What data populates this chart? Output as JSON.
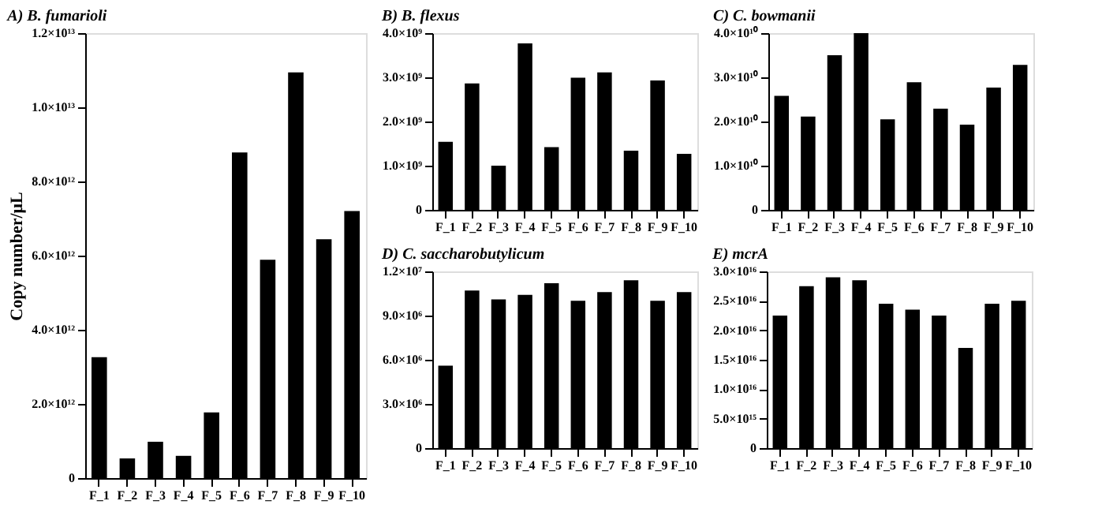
{
  "chart_data": [
    {
      "type": "bar",
      "title": "A) B. fumarioli",
      "ylabel": "Copy number/μL",
      "color": "#000000",
      "grid": false,
      "categories": [
        "F_1",
        "F_2",
        "F_3",
        "F_4",
        "F_5",
        "F_6",
        "F_7",
        "F_8",
        "F_9",
        "F_10"
      ],
      "values": [
        3260000000000.0,
        530000000000.0,
        980000000000.0,
        600000000000.0,
        1770000000000.0,
        8780000000000.0,
        5890000000000.0,
        10940000000000.0,
        6440000000000.0,
        7200000000000.0
      ],
      "ylim": [
        0,
        12000000000000.0
      ],
      "yticks": [
        0,
        {
          "value": 2000000000000.0,
          "label": "2.0×10¹²"
        },
        {
          "value": 4000000000000.0,
          "label": "4.0×10¹²"
        },
        {
          "value": 6000000000000.0,
          "label": "6.0×10¹²"
        },
        {
          "value": 8000000000000.0,
          "label": "8.0×10¹²"
        },
        {
          "value": 10000000000000.0,
          "label": "1.0×10¹³"
        },
        {
          "value": 12000000000000.0,
          "label": "1.2×10¹³"
        }
      ]
    },
    {
      "type": "bar",
      "title": "B) B. flexus",
      "color": "#000000",
      "grid": false,
      "categories": [
        "F_1",
        "F_2",
        "F_3",
        "F_4",
        "F_5",
        "F_6",
        "F_7",
        "F_8",
        "F_9",
        "F_10"
      ],
      "values": [
        1540000000.0,
        2860000000.0,
        1000000000.0,
        3770000000.0,
        1420000000.0,
        2990000000.0,
        3110000000.0,
        1340000000.0,
        2930000000.0,
        1270000000.0
      ],
      "ylim": [
        0,
        4000000000.0
      ],
      "yticks": [
        0,
        {
          "value": 1000000000.0,
          "label": "1.0×10⁹"
        },
        {
          "value": 2000000000.0,
          "label": "2.0×10⁹"
        },
        {
          "value": 3000000000.0,
          "label": "3.0×10⁹"
        },
        {
          "value": 4000000000.0,
          "label": "4.0×10⁹"
        }
      ]
    },
    {
      "type": "bar",
      "title": "C) C. bowmanii",
      "color": "#000000",
      "grid": false,
      "categories": [
        "F_1",
        "F_2",
        "F_3",
        "F_4",
        "F_5",
        "F_6",
        "F_7",
        "F_8",
        "F_9",
        "F_10"
      ],
      "values": [
        25800000000.0,
        21100000000.0,
        35000000000.0,
        40000000000.0,
        20500000000.0,
        28900000000.0,
        22900000000.0,
        19300000000.0,
        27700000000.0,
        32800000000.0
      ],
      "ylim": [
        0,
        40000000000.0
      ],
      "yticks": [
        0,
        {
          "value": 10000000000.0,
          "label": "1.0×10¹⁰"
        },
        {
          "value": 20000000000.0,
          "label": "2.0×10¹⁰"
        },
        {
          "value": 30000000000.0,
          "label": "3.0×10¹⁰"
        },
        {
          "value": 40000000000.0,
          "label": "4.0×10¹⁰"
        }
      ]
    },
    {
      "type": "bar",
      "title": "D) C. saccharobutylicum",
      "color": "#000000",
      "grid": false,
      "categories": [
        "F_1",
        "F_2",
        "F_3",
        "F_4",
        "F_5",
        "F_6",
        "F_7",
        "F_8",
        "F_9",
        "F_10"
      ],
      "values": [
        5600000.0,
        10700000.0,
        10100000.0,
        10400000.0,
        11200000.0,
        10000000.0,
        10600000.0,
        11400000.0,
        10000000.0,
        10600000.0
      ],
      "ylim": [
        0,
        12000000.0
      ],
      "yticks": [
        0,
        {
          "value": 3000000.0,
          "label": "3.0×10⁶"
        },
        {
          "value": 6000000.0,
          "label": "6.0×10⁶"
        },
        {
          "value": 9000000.0,
          "label": "9.0×10⁶"
        },
        {
          "value": 12000000.0,
          "label": "1.2×10⁷"
        }
      ]
    },
    {
      "type": "bar",
      "title": "E) mcrA",
      "color": "#000000",
      "grid": false,
      "categories": [
        "F_1",
        "F_2",
        "F_3",
        "F_4",
        "F_5",
        "F_6",
        "F_7",
        "F_8",
        "F_9",
        "F_10"
      ],
      "values": [
        2.25e+16,
        2.75e+16,
        2.9e+16,
        2.85e+16,
        2.45e+16,
        2.35e+16,
        2.25e+16,
        1.7e+16,
        2.45e+16,
        2.5e+16
      ],
      "ylim": [
        0,
        3e+16
      ],
      "yticks": [
        0,
        {
          "value": 5000000000000000.0,
          "label": "5.0×10¹⁵"
        },
        {
          "value": 1e+16,
          "label": "1.0×10¹⁶"
        },
        {
          "value": 1.5e+16,
          "label": "1.5×10¹⁶"
        },
        {
          "value": 2e+16,
          "label": "2.0×10¹⁶"
        },
        {
          "value": 2.5e+16,
          "label": "2.5×10¹⁶"
        },
        {
          "value": 3e+16,
          "label": "3.0×10¹⁶"
        }
      ]
    }
  ]
}
